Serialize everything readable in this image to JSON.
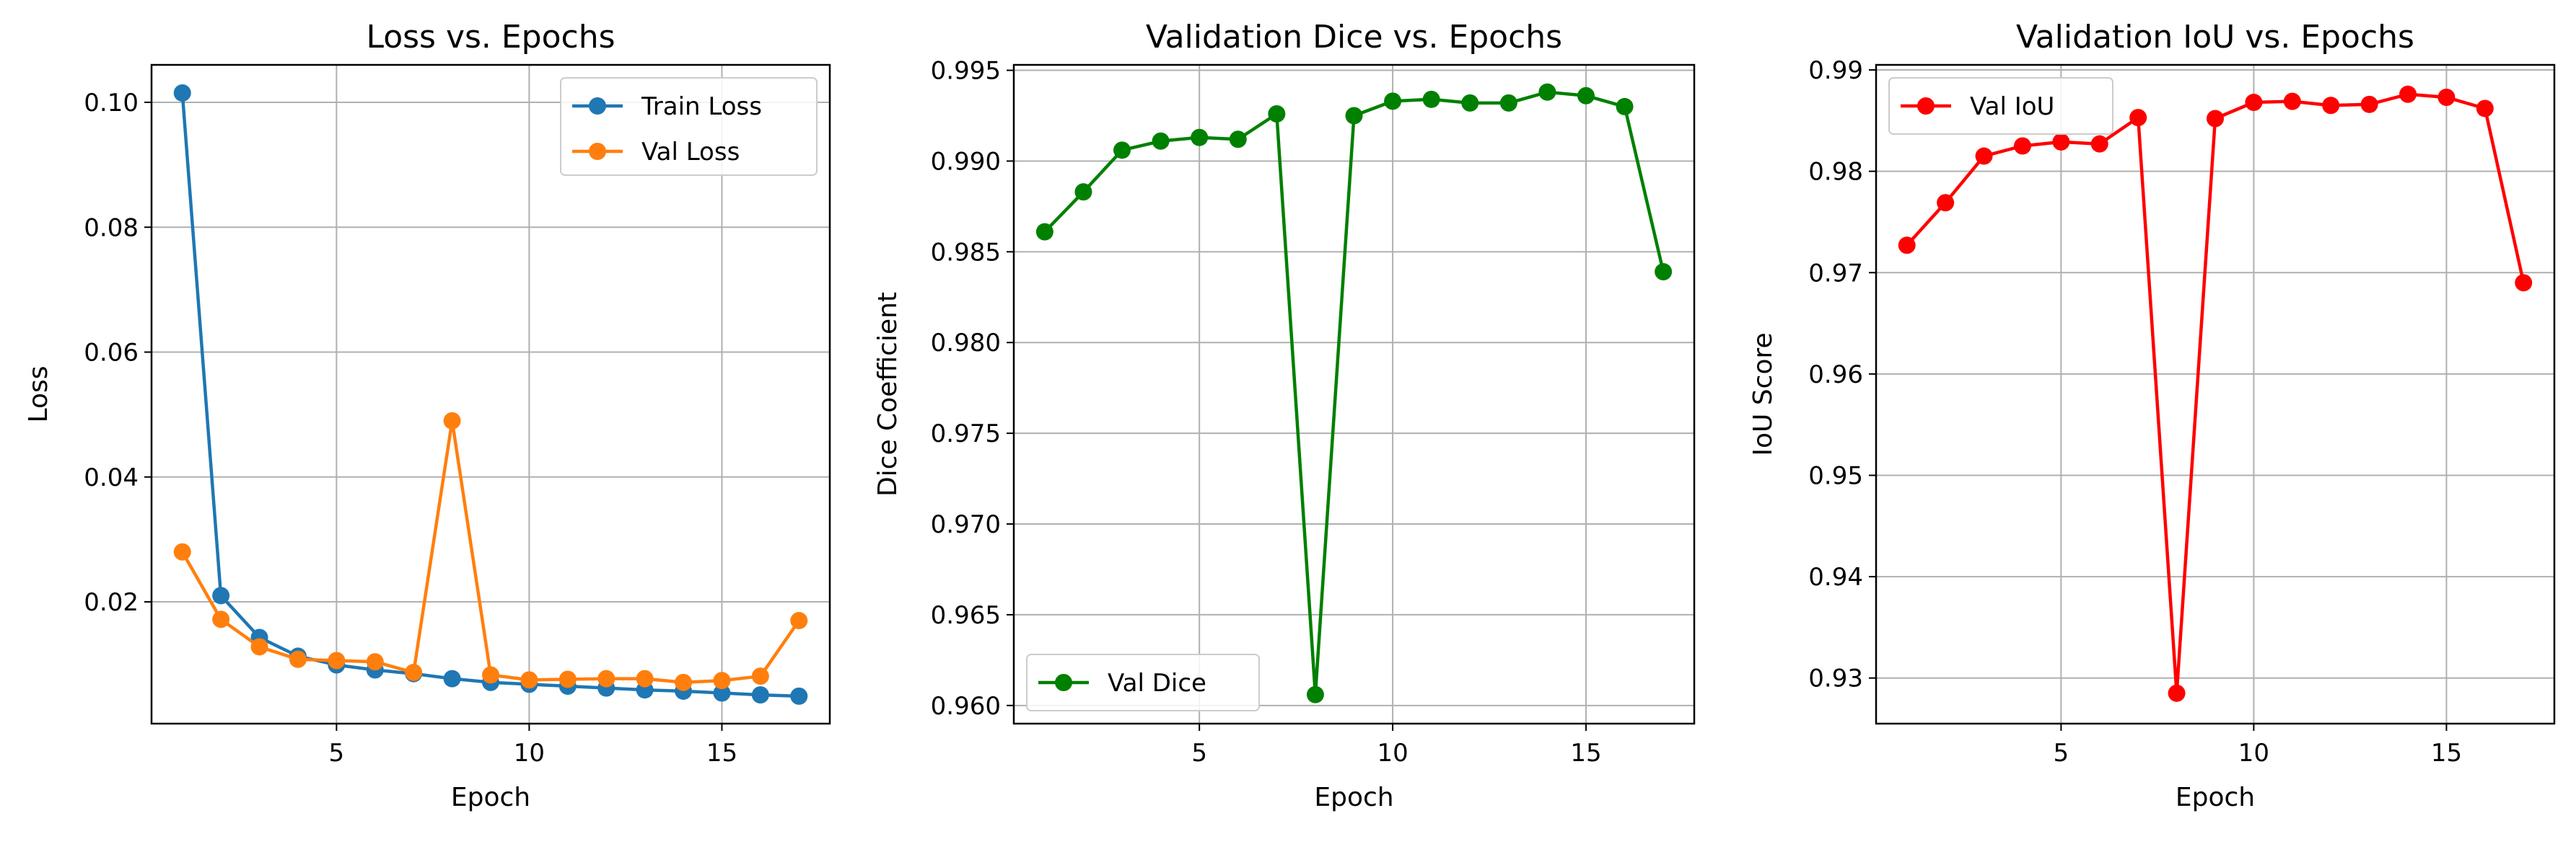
{
  "colors": {
    "train_loss": "#1f77b4",
    "val_loss": "#ff7f0e",
    "val_dice": "#008000",
    "val_iou": "#ff0000"
  },
  "chart_data": [
    {
      "type": "line",
      "title": "Loss vs. Epochs",
      "xlabel": "Epoch",
      "ylabel": "Loss",
      "xlim": [
        0.2,
        17.8
      ],
      "ylim": [
        0.0005,
        0.106
      ],
      "xticks": [
        5,
        10,
        15
      ],
      "yticks": [
        0.02,
        0.04,
        0.06,
        0.08,
        0.1
      ],
      "ytick_labels": [
        "0.02",
        "0.04",
        "0.06",
        "0.08",
        "0.10"
      ],
      "grid": true,
      "legend_position": "upper right",
      "x": [
        1,
        2,
        3,
        4,
        5,
        6,
        7,
        8,
        9,
        10,
        11,
        12,
        13,
        14,
        15,
        16,
        17
      ],
      "series": [
        {
          "name": "Train Loss",
          "color": "#1f77b4",
          "values": [
            0.1015,
            0.021,
            0.0143,
            0.0113,
            0.0099,
            0.0091,
            0.0085,
            0.0077,
            0.0071,
            0.0068,
            0.0065,
            0.0062,
            0.0059,
            0.0057,
            0.0054,
            0.0051,
            0.0049
          ]
        },
        {
          "name": "Val Loss",
          "color": "#ff7f0e",
          "values": [
            0.028,
            0.0172,
            0.0128,
            0.0108,
            0.0106,
            0.0104,
            0.0087,
            0.049,
            0.0083,
            0.0075,
            0.0076,
            0.0077,
            0.0077,
            0.0071,
            0.0074,
            0.0081,
            0.017
          ]
        }
      ]
    },
    {
      "type": "line",
      "title": "Validation Dice vs. Epochs",
      "xlabel": "Epoch",
      "ylabel": "Dice Coefficient",
      "xlim": [
        0.2,
        17.8
      ],
      "ylim": [
        0.959,
        0.9953
      ],
      "xticks": [
        5,
        10,
        15
      ],
      "yticks": [
        0.96,
        0.965,
        0.97,
        0.975,
        0.98,
        0.985,
        0.99,
        0.995
      ],
      "ytick_labels": [
        "0.960",
        "0.965",
        "0.970",
        "0.975",
        "0.980",
        "0.985",
        "0.990",
        "0.995"
      ],
      "grid": true,
      "legend_position": "lower left",
      "x": [
        1,
        2,
        3,
        4,
        5,
        6,
        7,
        8,
        9,
        10,
        11,
        12,
        13,
        14,
        15,
        16,
        17
      ],
      "series": [
        {
          "name": "Val Dice",
          "color": "#008000",
          "values": [
            0.9861,
            0.9883,
            0.9906,
            0.9911,
            0.9913,
            0.9912,
            0.9926,
            0.9606,
            0.9925,
            0.9933,
            0.9934,
            0.9932,
            0.9932,
            0.9938,
            0.9936,
            0.993,
            0.9839
          ]
        }
      ]
    },
    {
      "type": "line",
      "title": "Validation IoU vs. Epochs",
      "xlabel": "Epoch",
      "ylabel": "IoU Score",
      "xlim": [
        0.2,
        17.8
      ],
      "ylim": [
        0.9255,
        0.9905
      ],
      "xticks": [
        5,
        10,
        15
      ],
      "yticks": [
        0.93,
        0.94,
        0.95,
        0.96,
        0.97,
        0.98,
        0.99
      ],
      "ytick_labels": [
        "0.93",
        "0.94",
        "0.95",
        "0.96",
        "0.97",
        "0.98",
        "0.99"
      ],
      "grid": true,
      "legend_position": "upper left",
      "x": [
        1,
        2,
        3,
        4,
        5,
        6,
        7,
        8,
        9,
        10,
        11,
        12,
        13,
        14,
        15,
        16,
        17
      ],
      "series": [
        {
          "name": "Val IoU",
          "color": "#ff0000",
          "values": [
            0.9727,
            0.9769,
            0.9815,
            0.9825,
            0.9829,
            0.9827,
            0.9853,
            0.9285,
            0.9852,
            0.9868,
            0.9869,
            0.9865,
            0.9866,
            0.9876,
            0.9873,
            0.9862,
            0.969
          ]
        }
      ]
    }
  ]
}
